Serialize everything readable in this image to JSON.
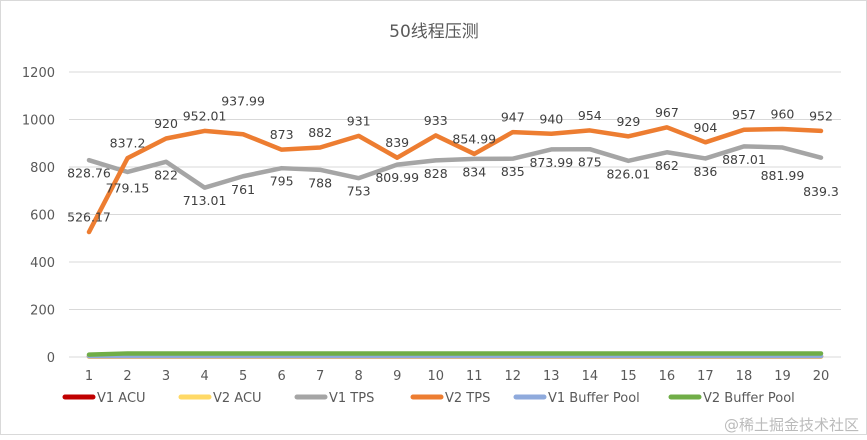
{
  "chart_data": {
    "type": "line",
    "title": "50线程压测",
    "xlabel": "",
    "ylabel": "",
    "categories": [
      "1",
      "2",
      "3",
      "4",
      "5",
      "6",
      "7",
      "8",
      "9",
      "10",
      "11",
      "12",
      "13",
      "14",
      "15",
      "16",
      "17",
      "18",
      "19",
      "20"
    ],
    "ylim": [
      0,
      1200
    ],
    "yticks": [
      0,
      200,
      400,
      600,
      800,
      1000,
      1200
    ],
    "grid": true,
    "legend_position": "bottom",
    "series": [
      {
        "name": "V1 ACU",
        "color": "#c00000",
        "labels": false,
        "values": [
          2,
          2,
          2,
          2,
          2,
          2,
          2,
          2,
          2,
          2,
          2,
          2,
          2,
          2,
          2,
          2,
          2,
          2,
          2,
          2
        ]
      },
      {
        "name": "V2 ACU",
        "color": "#ffd966",
        "labels": false,
        "values": [
          2,
          2,
          2,
          2,
          2,
          2,
          2,
          2,
          2,
          2,
          2,
          2,
          2,
          2,
          2,
          2,
          2,
          2,
          2,
          2
        ]
      },
      {
        "name": "V1 TPS",
        "color": "#a5a5a5",
        "labels": true,
        "values": [
          828.76,
          779.15,
          822,
          713.01,
          761,
          795,
          788,
          753,
          809.99,
          828,
          834,
          835,
          873.99,
          875,
          826.01,
          862,
          836,
          887.01,
          881.99,
          839.3
        ]
      },
      {
        "name": "V2 TPS",
        "color": "#ed7d31",
        "labels": true,
        "values": [
          526.17,
          837.2,
          920,
          952.01,
          937.99,
          873,
          882,
          931,
          839,
          933,
          854.99,
          947,
          940,
          954,
          929,
          967,
          904,
          957,
          960,
          952
        ]
      },
      {
        "name": "V1 Buffer Pool",
        "color": "#8faadc",
        "labels": false,
        "values": [
          4,
          4,
          4,
          4,
          4,
          4,
          4,
          4,
          4,
          4,
          4,
          4,
          4,
          4,
          4,
          4,
          4,
          4,
          4,
          4
        ]
      },
      {
        "name": "V2 Buffer Pool",
        "color": "#70ad47",
        "labels": false,
        "values": [
          10,
          15,
          15,
          15,
          15,
          15,
          15,
          15,
          15,
          15,
          15,
          15,
          15,
          15,
          15,
          15,
          15,
          15,
          15,
          15
        ]
      }
    ]
  },
  "watermark": "@稀土掘金技术社区"
}
